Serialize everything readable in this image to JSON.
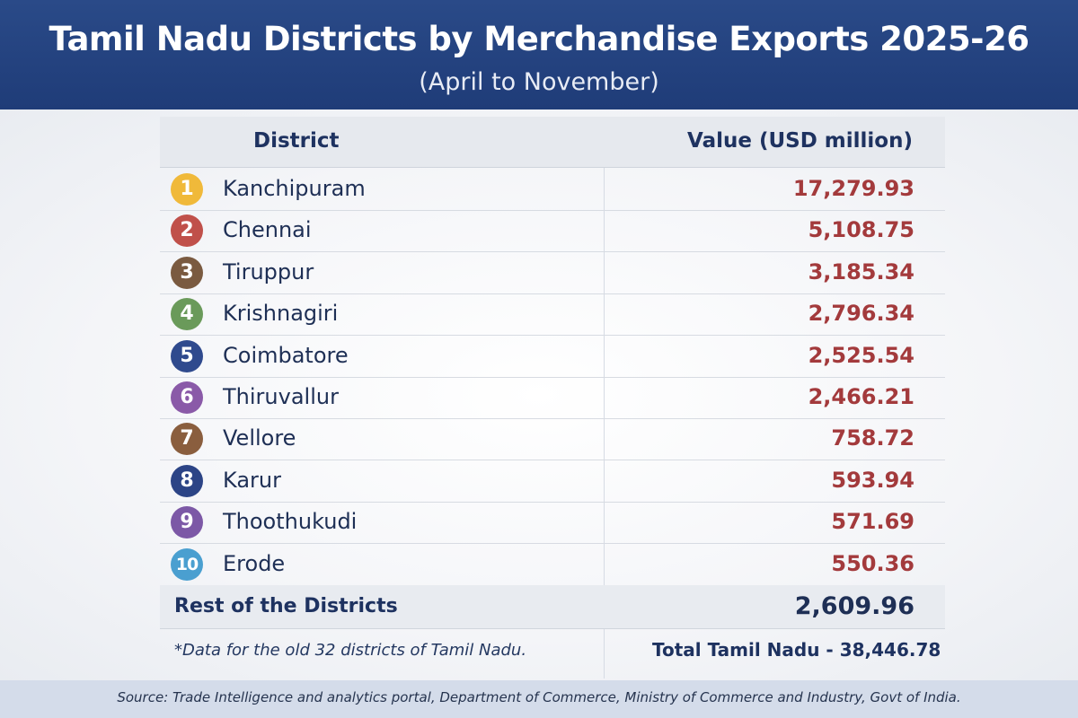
{
  "header": {
    "title": "Tamil Nadu Districts by Merchandise Exports 2025-26",
    "subtitle": "(April to November)"
  },
  "table": {
    "columns": [
      "District",
      "Value (USD million)"
    ],
    "rows": [
      {
        "rank": "1",
        "district": "Kanchipuram",
        "value": "17,279.93",
        "badge_color": "#f0b93a"
      },
      {
        "rank": "2",
        "district": "Chennai",
        "value": "5,108.75",
        "badge_color": "#c0504a"
      },
      {
        "rank": "3",
        "district": "Tiruppur",
        "value": "3,185.34",
        "badge_color": "#7a5a40"
      },
      {
        "rank": "4",
        "district": "Krishnagiri",
        "value": "2,796.34",
        "badge_color": "#6a9a5a"
      },
      {
        "rank": "5",
        "district": "Coimbatore",
        "value": "2,525.54",
        "badge_color": "#2f4a8e"
      },
      {
        "rank": "6",
        "district": "Thiruvallur",
        "value": "2,466.21",
        "badge_color": "#8a5aa8"
      },
      {
        "rank": "7",
        "district": "Vellore",
        "value": "758.72",
        "badge_color": "#8a5e3e"
      },
      {
        "rank": "8",
        "district": "Karur",
        "value": "593.94",
        "badge_color": "#2c4486"
      },
      {
        "rank": "9",
        "district": "Thoothukudi",
        "value": "571.69",
        "badge_color": "#7c58a6"
      },
      {
        "rank": "10",
        "district": "Erode",
        "value": "550.36",
        "badge_color": "#4a9fd0"
      }
    ],
    "rest": {
      "label": "Rest of the Districts",
      "value": "2,609.96"
    }
  },
  "footnote": "*Data for the old 32 districts of Tamil Nadu.",
  "total": "Total Tamil Nadu - 38,446.78",
  "source": "Source: Trade Intelligence and analytics portal, Department of Commerce, Ministry of Commerce and Industry, Govt of India."
}
